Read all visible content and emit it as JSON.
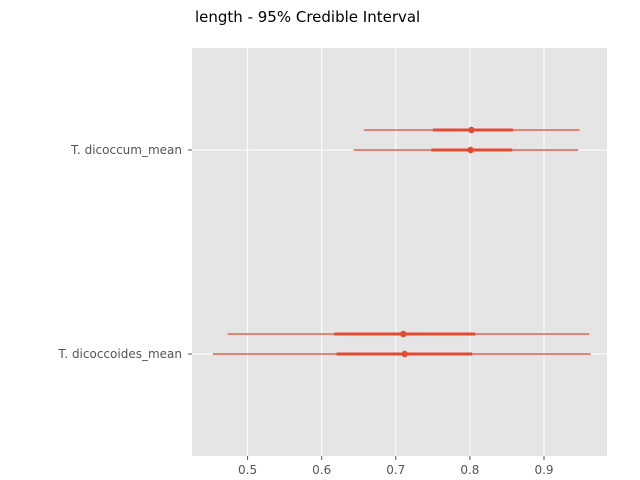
{
  "chart_data": {
    "type": "forest",
    "title": "length - 95% Credible Interval",
    "xlabel": "",
    "ylabel": "",
    "xlim": [
      0.425,
      0.985
    ],
    "xticks": [
      0.5,
      0.6,
      0.7,
      0.8,
      0.9
    ],
    "xtick_labels": [
      "0.5",
      "0.6",
      "0.7",
      "0.8",
      "0.9"
    ],
    "grid": true,
    "color": "#E24A33",
    "background": "#E5E5E5",
    "categories": [
      "T. dicoccum_mean",
      "T. dicoccoides_mean"
    ],
    "intervals": [
      {
        "category": "T. dicoccum_mean",
        "chain": 1,
        "hdi_low": 0.657,
        "iqr_low": 0.75,
        "median": 0.802,
        "iqr_high": 0.858,
        "hdi_high": 0.948
      },
      {
        "category": "T. dicoccum_mean",
        "chain": 2,
        "hdi_low": 0.643,
        "iqr_low": 0.748,
        "median": 0.801,
        "iqr_high": 0.857,
        "hdi_high": 0.946
      },
      {
        "category": "T. dicoccoides_mean",
        "chain": 1,
        "hdi_low": 0.473,
        "iqr_low": 0.617,
        "median": 0.71,
        "iqr_high": 0.807,
        "hdi_high": 0.961
      },
      {
        "category": "T. dicoccoides_mean",
        "chain": 2,
        "hdi_low": 0.453,
        "iqr_low": 0.62,
        "median": 0.712,
        "iqr_high": 0.803,
        "hdi_high": 0.963
      }
    ]
  }
}
